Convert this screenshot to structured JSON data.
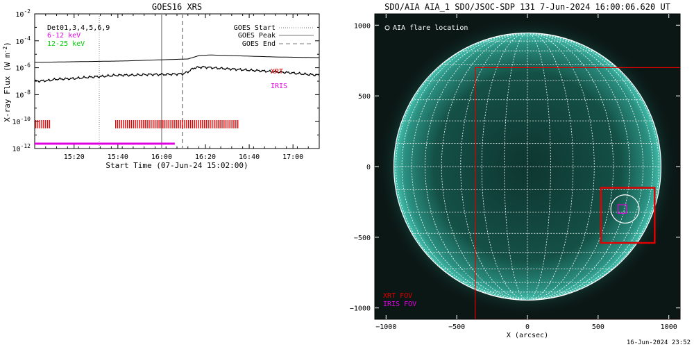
{
  "footer_timestamp": "16-Jun-2024 23:52",
  "colors": {
    "xrt": "#e00000",
    "iris": "#e000e0",
    "low_band": "#e000e0",
    "high_band": "#00cc00",
    "aia_teal": "#2fa89a"
  },
  "chart_data": [
    {
      "type": "line",
      "title": "GOES16 XRS",
      "xlabel": "Start Time (07-Jun-24 15:02:00)",
      "ylabel": "X-ray Flux (W m",
      "ylabel_sup": "-2",
      "ylabel_end": ")",
      "y_scale": "log",
      "ylim_exp": [
        -12,
        -2
      ],
      "y_ticks": [
        {
          "base": "10",
          "exp": "-2"
        },
        {
          "base": "10",
          "exp": "-4"
        },
        {
          "base": "10",
          "exp": "-6"
        },
        {
          "base": "10",
          "exp": "-8"
        },
        {
          "base": "10",
          "exp": "-10"
        },
        {
          "base": "10",
          "exp": "-12"
        }
      ],
      "x_range_min": [
        0,
        130
      ],
      "x_ticks": [
        {
          "label": "15:20",
          "t": 18
        },
        {
          "label": "15:40",
          "t": 38
        },
        {
          "label": "16:00",
          "t": 58
        },
        {
          "label": "16:20",
          "t": 78
        },
        {
          "label": "16:40",
          "t": 98
        },
        {
          "label": "17:00",
          "t": 118
        }
      ],
      "legend_left": {
        "det": "Det01,3,4,5,6,9",
        "low": "6-12 keV",
        "high": "12-25 keV"
      },
      "legend_right": [
        {
          "label": "GOES Start",
          "style": "dotted"
        },
        {
          "label": "GOES Peak",
          "style": "solid"
        },
        {
          "label": "GOES End",
          "style": "dashed"
        }
      ],
      "annotations": {
        "xrt": "XRT",
        "iris": "IRIS"
      },
      "events_min": {
        "start": 29.5,
        "peak": 58,
        "end": 67.5
      },
      "series": [
        {
          "name": "6-12 keV",
          "t": [
            0,
            20,
            40,
            60,
            70,
            75,
            80,
            90,
            100,
            110,
            130
          ],
          "log": [
            -5.6,
            -5.55,
            -5.5,
            -5.4,
            -5.35,
            -5.1,
            -5.05,
            -5.1,
            -5.15,
            -5.2,
            -5.25
          ]
        },
        {
          "name": "12-25 keV",
          "t": [
            0,
            6,
            10,
            18,
            25,
            30,
            38,
            45,
            52,
            58,
            63,
            68,
            70,
            73,
            77,
            85,
            95,
            105,
            115,
            125,
            130
          ],
          "log": [
            -7.0,
            -6.95,
            -6.85,
            -6.8,
            -6.7,
            -6.65,
            -6.55,
            -6.55,
            -6.5,
            -6.5,
            -6.48,
            -6.45,
            -6.3,
            -6.0,
            -5.95,
            -6.05,
            -6.15,
            -6.25,
            -6.35,
            -6.5,
            -6.55
          ]
        }
      ],
      "xrt_obs": [
        {
          "start": 0.5,
          "end": 7.5
        },
        {
          "start": 37,
          "end": 93
        }
      ],
      "iris_obs": {
        "start": 0,
        "end": 64
      }
    },
    {
      "type": "map",
      "title": "SDO/AIA AIA_1 SDO/JSOC-SDP 131  7-Jun-2024 16:00:06.620 UT",
      "xlabel": "X (arcsec)",
      "xlim": [
        -1080,
        1080
      ],
      "ylim": [
        -1080,
        1080
      ],
      "x_ticks": [
        -1000,
        -500,
        0,
        500,
        1000
      ],
      "y_ticks": [
        -1000,
        -500,
        0,
        500,
        1000
      ],
      "legend": "AIA flare location",
      "fov_labels": {
        "xrt": "XRT FOV",
        "iris": "IRIS FOV"
      },
      "solar_radius": 945,
      "xrt_fov": {
        "x": [
          -370,
          1080
        ],
        "y": [
          -1080,
          700
        ]
      },
      "xrt_small_fov": {
        "x": [
          520,
          900
        ],
        "y": [
          -540,
          -150
        ]
      },
      "iris_fov": {
        "x": [
          640,
          700
        ],
        "y": [
          -330,
          -270
        ]
      },
      "flare": {
        "x": 690,
        "y": -300,
        "r": 100
      }
    }
  ]
}
